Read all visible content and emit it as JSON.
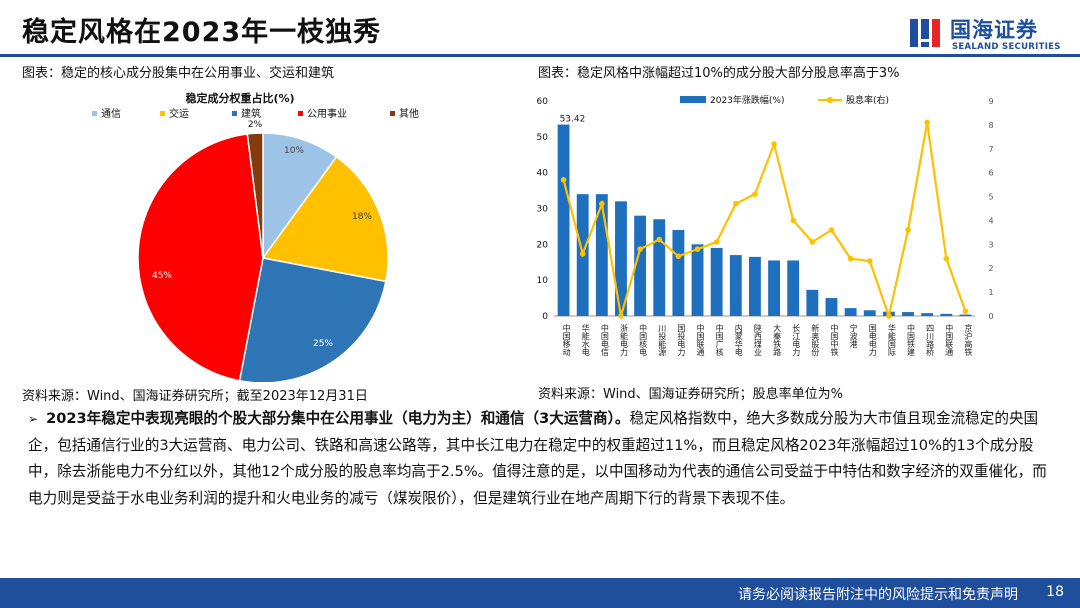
{
  "header": {
    "title": "稳定风格在2023年一枝独秀",
    "logo_cn": "国海证券",
    "logo_en": "SEALAND SECURITIES",
    "brand_color": "#1f4e9c"
  },
  "left_chart": {
    "caption": "图表：稳定的核心成分股集中在公用事业、交运和建筑",
    "source": "资料来源：Wind、国海证券研究所；截至2023年12月31日"
  },
  "right_chart": {
    "caption": "图表：稳定风格中涨幅超过10%的成分股大部分股息率高于3%",
    "source": "资料来源：Wind、国海证券研究所；股息率单位为%"
  },
  "chart_data": [
    {
      "type": "pie",
      "title": "稳定成分权重占比(%)",
      "legend": [
        "通信",
        "交运",
        "建筑",
        "公用事业",
        "其他"
      ],
      "values": [
        10,
        18,
        25,
        45,
        2
      ],
      "labels": [
        "10%",
        "18%",
        "25%",
        "45%",
        "2%"
      ],
      "colors": [
        "#9dc3e6",
        "#ffc000",
        "#2e75b6",
        "#ff0000",
        "#843c0c"
      ],
      "legend_position": "top"
    },
    {
      "type": "bar",
      "categories": [
        "中国移动",
        "华能水电",
        "中国电信",
        "浙能电力",
        "中国核电",
        "川投能源",
        "国投电力",
        "中国联通",
        "中国广核",
        "内蒙华电",
        "陕西煤业",
        "大秦铁路",
        "长江电力",
        "新奥股份",
        "中国中铁",
        "宁波港",
        "国电电力",
        "华能国际",
        "中国铁建",
        "四川路桥",
        "中国联通",
        "京沪高铁"
      ],
      "series": [
        {
          "name": "2023年涨跌幅(%)",
          "type": "bar",
          "axis": "left",
          "color": "#1f6fbf",
          "values": [
            53.42,
            34,
            34,
            32,
            28,
            27,
            24,
            20,
            19,
            17,
            16.5,
            15.5,
            15.5,
            7.3,
            5,
            2.2,
            1.6,
            1.2,
            1.1,
            0.8,
            0.6,
            0.4
          ]
        },
        {
          "name": "股息率(右)",
          "type": "line",
          "axis": "right",
          "color": "#ffc000",
          "values": [
            5.7,
            2.6,
            4.7,
            0,
            2.8,
            3.2,
            2.5,
            2.8,
            3.1,
            4.7,
            5.1,
            7.2,
            4.0,
            3.1,
            3.6,
            2.4,
            2.3,
            0,
            3.6,
            8.1,
            2.4,
            0.2
          ]
        }
      ],
      "data_labels": [
        "53.42"
      ],
      "ylim": [
        0,
        60
      ],
      "yticks": [
        0,
        10,
        20,
        30,
        40,
        50,
        60
      ],
      "y2lim": [
        0,
        9
      ],
      "y2ticks": [
        0,
        1,
        2,
        3,
        4,
        5,
        6,
        7,
        8,
        9
      ],
      "legend_position": "top"
    }
  ],
  "body": {
    "lead": "2023年稳定中表现亮眼的个股大部分集中在公用事业（电力为主）和通信（3大运营商）。",
    "rest": "稳定风格指数中，绝大多数成分股为大市值且现金流稳定的央国企，包括通信行业的3大运营商、电力公司、铁路和高速公路等，其中长江电力在稳定中的权重超过11%，而且稳定风格2023年涨幅超过10%的13个成分股中，除去浙能电力不分红以外，其他12个成分股的股息率均高于2.5%。值得注意的是，以中国移动为代表的通信公司受益于中特估和数字经济的双重催化，而电力则是受益于水电业务利润的提升和火电业务的减亏（煤炭限价），但是建筑行业在地产周期下行的背景下表现不佳。"
  },
  "footer": {
    "disclaimer": "请务必阅读报告附注中的风险提示和免责声明",
    "page": "18"
  }
}
